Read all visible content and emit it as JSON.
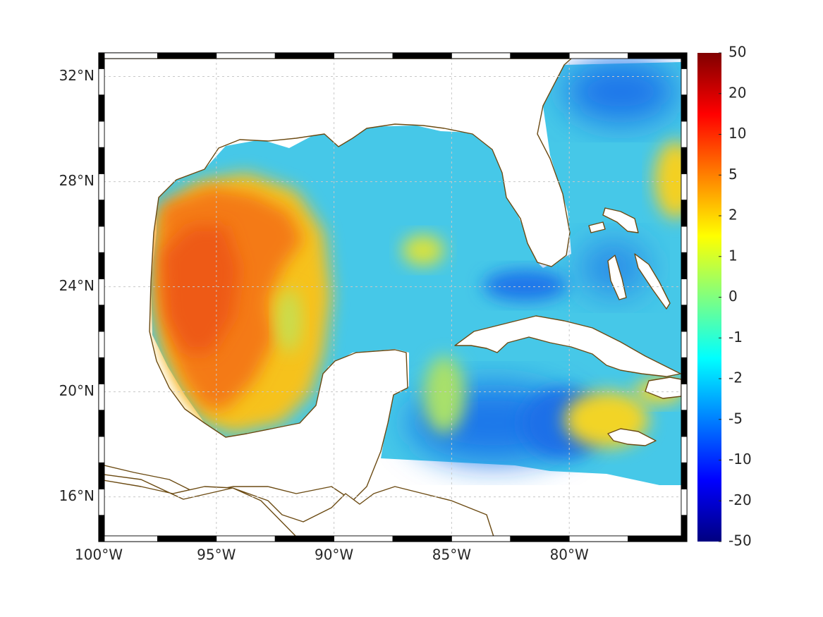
{
  "map": {
    "lon_range": [
      -100,
      -75
    ],
    "lat_range": [
      14.3,
      32.9
    ],
    "x_ticks": [
      {
        "value": -100,
        "label": "100°W"
      },
      {
        "value": -95,
        "label": "95°W"
      },
      {
        "value": -90,
        "label": "90°W"
      },
      {
        "value": -85,
        "label": "85°W"
      },
      {
        "value": -80,
        "label": "80°W"
      }
    ],
    "y_ticks": [
      {
        "value": 16,
        "label": "16°N"
      },
      {
        "value": 20,
        "label": "20°N"
      },
      {
        "value": 24,
        "label": "24°N"
      },
      {
        "value": 28,
        "label": "28°N"
      },
      {
        "value": 32,
        "label": "32°N"
      }
    ],
    "grid": true,
    "coast_color": "#6b4a12",
    "land_color": "#ffffff"
  },
  "colorbar": {
    "placement": "right",
    "ticks": [
      "50",
      "20",
      "10",
      "5",
      "2",
      "1",
      "0",
      "-1",
      "-2",
      "-5",
      "-10",
      "-20",
      "-50"
    ],
    "colormap": [
      "#800000",
      "#ff0000",
      "#ff8000",
      "#ffff00",
      "#80ff80",
      "#00ffff",
      "#0080ff",
      "#0000ff",
      "#000080"
    ]
  }
}
